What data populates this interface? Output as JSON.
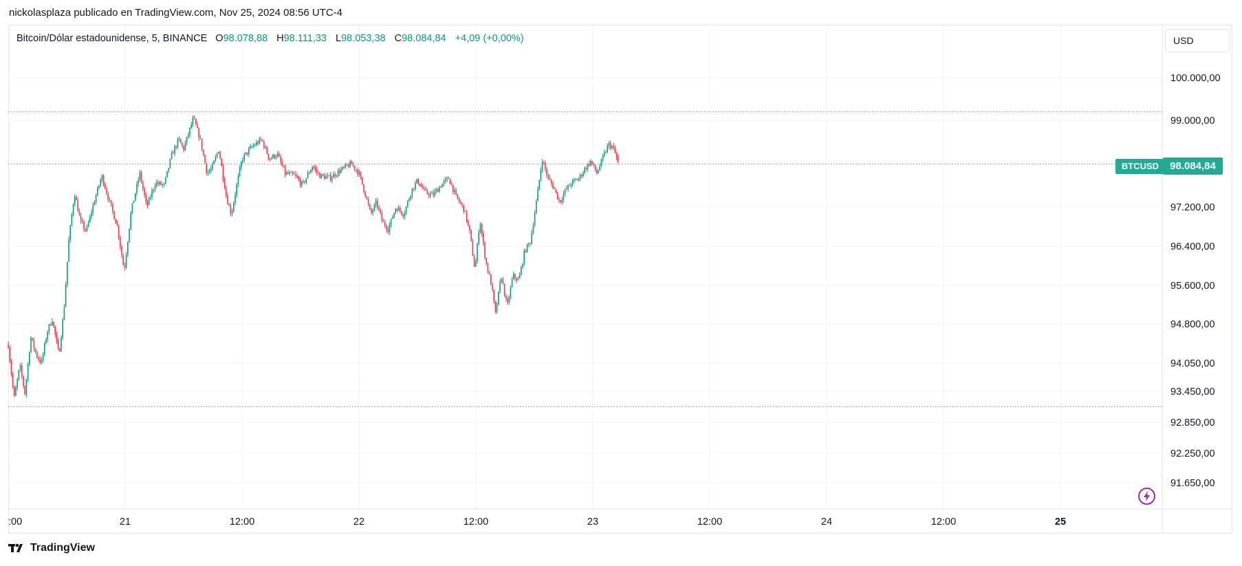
{
  "header": {
    "published_line": "nickolasplaza publicado en TradingView.com, Nov 25, 2024 08:56 UTC-4"
  },
  "legend": {
    "symbol": "Bitcoin/Dólar estadounidense, 5, BINANCE",
    "open_label": "O",
    "open": "98.078,88",
    "high_label": "H",
    "high": "98.111,33",
    "low_label": "L",
    "low": "98.053,38",
    "close_label": "C",
    "close": "98.084,84",
    "change": "+4,09 (+0,00%)"
  },
  "price_scale": {
    "currency": "USD",
    "ticker_tag": "BTCUSD",
    "last_price": "98.084,84"
  },
  "footer": {
    "brand": "TradingView"
  },
  "colors": {
    "up": "#089981",
    "down": "#f23645",
    "accent": "#22ab94",
    "grid": "#f0f3fa",
    "dotted_line": "#9598a1",
    "bolt": "#9c27b0"
  },
  "icons": {
    "bolt": "lightning-icon",
    "logo": "tradingview-logo-icon"
  },
  "chart_data": {
    "type": "candlestick",
    "title": "Bitcoin/Dólar estadounidense, 5, BINANCE",
    "interval": "5",
    "exchange": "BINANCE",
    "y_tick_labels": [
      "100.000,00",
      "99.000,00",
      "97.200,00",
      "96.400,00",
      "95.600,00",
      "94.800,00",
      "94.050,00",
      "93.450,00",
      "92.850,00",
      "92.250,00",
      "91.650,00"
    ],
    "y_tick_values": [
      100000,
      99000,
      97200,
      96400,
      95600,
      94800,
      94050,
      93450,
      92850,
      92250,
      91650
    ],
    "x_tick_labels": [
      ":00",
      "21",
      "12:00",
      "22",
      "12:00",
      "23",
      "12:00",
      "24",
      "12:00",
      "25"
    ],
    "x_tick_bold": [
      false,
      false,
      false,
      false,
      false,
      false,
      false,
      false,
      false,
      true
    ],
    "horizontal_levels": [
      99200,
      98090,
      93150
    ],
    "grid": true,
    "price_path": [
      {
        "t": 0.0,
        "p": 94400
      },
      {
        "t": 0.3,
        "p": 93300
      },
      {
        "t": 0.6,
        "p": 94000
      },
      {
        "t": 0.85,
        "p": 93400
      },
      {
        "t": 1.15,
        "p": 94550
      },
      {
        "t": 1.45,
        "p": 94200
      },
      {
        "t": 1.7,
        "p": 94050
      },
      {
        "t": 2.0,
        "p": 94650
      },
      {
        "t": 2.25,
        "p": 94900
      },
      {
        "t": 2.6,
        "p": 94200
      },
      {
        "t": 2.85,
        "p": 95050
      },
      {
        "t": 3.1,
        "p": 96500
      },
      {
        "t": 3.4,
        "p": 97500
      },
      {
        "t": 3.7,
        "p": 96900
      },
      {
        "t": 4.0,
        "p": 96700
      },
      {
        "t": 4.4,
        "p": 97300
      },
      {
        "t": 4.8,
        "p": 97850
      },
      {
        "t": 5.2,
        "p": 97300
      },
      {
        "t": 5.6,
        "p": 96800
      },
      {
        "t": 5.95,
        "p": 95900
      },
      {
        "t": 6.3,
        "p": 97100
      },
      {
        "t": 6.75,
        "p": 97900
      },
      {
        "t": 7.1,
        "p": 97200
      },
      {
        "t": 7.55,
        "p": 97700
      },
      {
        "t": 8.0,
        "p": 97650
      },
      {
        "t": 8.4,
        "p": 98300
      },
      {
        "t": 8.75,
        "p": 98600
      },
      {
        "t": 9.0,
        "p": 98400
      },
      {
        "t": 9.5,
        "p": 99050
      },
      {
        "t": 9.85,
        "p": 98600
      },
      {
        "t": 10.2,
        "p": 97900
      },
      {
        "t": 10.45,
        "p": 98000
      },
      {
        "t": 10.8,
        "p": 98400
      },
      {
        "t": 11.2,
        "p": 97400
      },
      {
        "t": 11.45,
        "p": 97050
      },
      {
        "t": 11.7,
        "p": 97600
      },
      {
        "t": 12.0,
        "p": 98200
      },
      {
        "t": 12.5,
        "p": 98450
      },
      {
        "t": 13.0,
        "p": 98600
      },
      {
        "t": 13.4,
        "p": 98200
      },
      {
        "t": 13.8,
        "p": 98300
      },
      {
        "t": 14.2,
        "p": 97900
      },
      {
        "t": 14.7,
        "p": 97850
      },
      {
        "t": 15.1,
        "p": 97650
      },
      {
        "t": 15.6,
        "p": 98050
      },
      {
        "t": 16.0,
        "p": 97850
      },
      {
        "t": 16.5,
        "p": 97800
      },
      {
        "t": 17.0,
        "p": 97950
      },
      {
        "t": 17.6,
        "p": 98100
      },
      {
        "t": 18.0,
        "p": 97900
      },
      {
        "t": 18.3,
        "p": 97500
      },
      {
        "t": 18.6,
        "p": 97050
      },
      {
        "t": 18.9,
        "p": 97300
      },
      {
        "t": 19.2,
        "p": 96900
      },
      {
        "t": 19.5,
        "p": 96750
      },
      {
        "t": 19.9,
        "p": 97200
      },
      {
        "t": 20.3,
        "p": 97050
      },
      {
        "t": 20.7,
        "p": 97550
      },
      {
        "t": 21.0,
        "p": 97750
      },
      {
        "t": 21.4,
        "p": 97500
      },
      {
        "t": 21.8,
        "p": 97450
      },
      {
        "t": 22.2,
        "p": 97650
      },
      {
        "t": 22.6,
        "p": 97800
      },
      {
        "t": 23.0,
        "p": 97400
      },
      {
        "t": 23.4,
        "p": 97150
      },
      {
        "t": 23.7,
        "p": 96650
      },
      {
        "t": 23.95,
        "p": 95900
      },
      {
        "t": 24.2,
        "p": 96950
      },
      {
        "t": 24.5,
        "p": 96100
      },
      {
        "t": 24.8,
        "p": 95600
      },
      {
        "t": 25.0,
        "p": 95000
      },
      {
        "t": 25.3,
        "p": 95800
      },
      {
        "t": 25.6,
        "p": 95150
      },
      {
        "t": 25.9,
        "p": 95800
      },
      {
        "t": 26.2,
        "p": 95700
      },
      {
        "t": 26.5,
        "p": 96300
      },
      {
        "t": 26.8,
        "p": 96500
      },
      {
        "t": 27.1,
        "p": 97300
      },
      {
        "t": 27.4,
        "p": 98200
      },
      {
        "t": 27.7,
        "p": 97800
      },
      {
        "t": 28.0,
        "p": 97600
      },
      {
        "t": 28.3,
        "p": 97300
      },
      {
        "t": 28.6,
        "p": 97550
      },
      {
        "t": 28.9,
        "p": 97700
      },
      {
        "t": 29.3,
        "p": 97800
      },
      {
        "t": 29.6,
        "p": 98000
      },
      {
        "t": 29.9,
        "p": 98150
      },
      {
        "t": 30.2,
        "p": 97900
      },
      {
        "t": 30.5,
        "p": 98200
      },
      {
        "t": 30.8,
        "p": 98500
      },
      {
        "t": 31.0,
        "p": 98450
      },
      {
        "t": 31.2,
        "p": 98250
      },
      {
        "t": 31.3,
        "p": 98084.84
      }
    ]
  }
}
